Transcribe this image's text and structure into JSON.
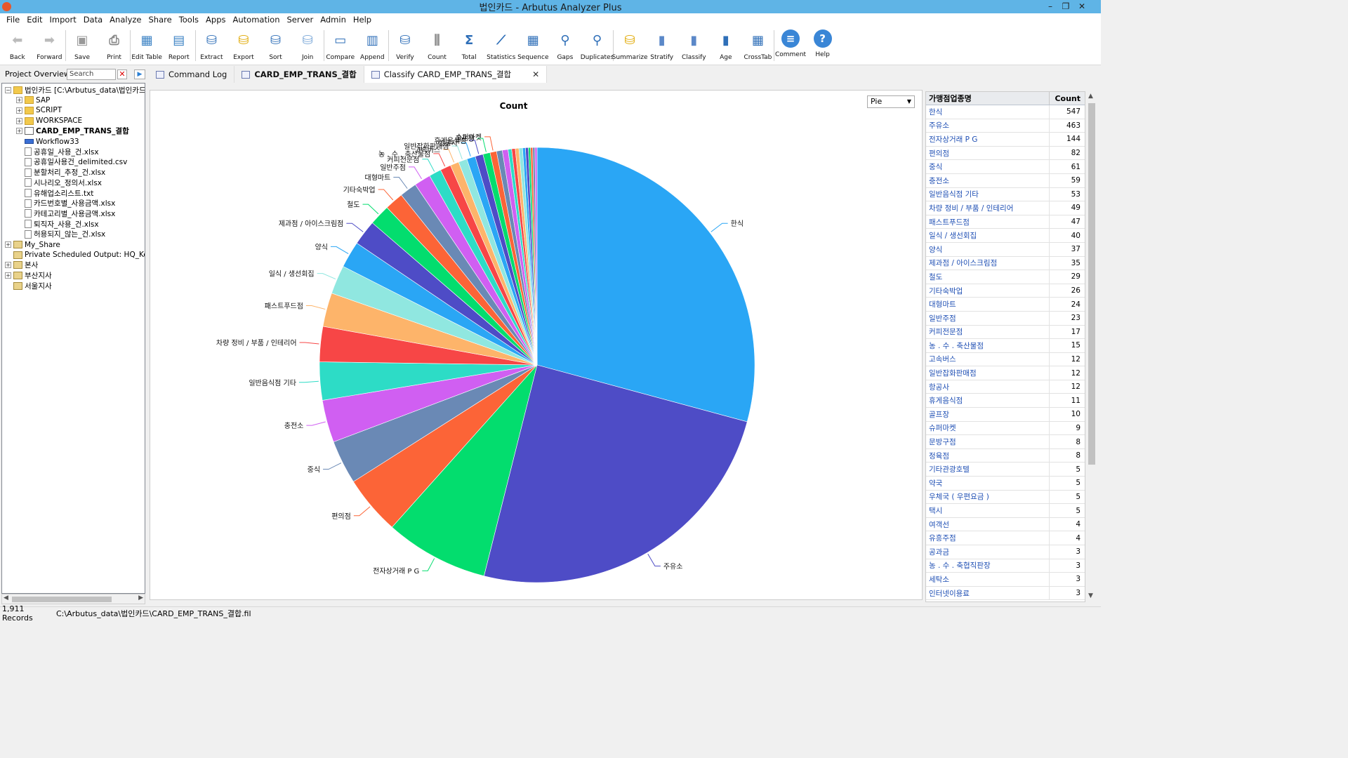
{
  "window": {
    "title": "법인카드 - Arbutus Analyzer Plus"
  },
  "menu": [
    "File",
    "Edit",
    "Import",
    "Data",
    "Analyze",
    "Share",
    "Tools",
    "Apps",
    "Automation",
    "Server",
    "Admin",
    "Help"
  ],
  "toolbar": [
    {
      "label": "Back",
      "icon": "back-arrow-icon"
    },
    {
      "label": "Forward",
      "icon": "forward-arrow-icon"
    },
    {
      "label": "Save",
      "icon": "save-icon"
    },
    {
      "label": "Print",
      "icon": "print-icon"
    },
    {
      "label": "Edit Table",
      "icon": "edit-table-icon"
    },
    {
      "label": "Report",
      "icon": "report-icon"
    },
    {
      "label": "Extract",
      "icon": "extract-icon"
    },
    {
      "label": "Export",
      "icon": "export-icon"
    },
    {
      "label": "Sort",
      "icon": "sort-icon"
    },
    {
      "label": "Join",
      "icon": "join-icon"
    },
    {
      "label": "Compare",
      "icon": "compare-icon"
    },
    {
      "label": "Append",
      "icon": "append-icon"
    },
    {
      "label": "Verify",
      "icon": "verify-icon"
    },
    {
      "label": "Count",
      "icon": "count-icon"
    },
    {
      "label": "Total",
      "icon": "sigma-icon"
    },
    {
      "label": "Statistics",
      "icon": "statistics-icon"
    },
    {
      "label": "Sequence",
      "icon": "sequence-icon"
    },
    {
      "label": "Gaps",
      "icon": "gaps-icon"
    },
    {
      "label": "Duplicates",
      "icon": "duplicates-icon"
    },
    {
      "label": "Summarize",
      "icon": "summarize-icon"
    },
    {
      "label": "Stratify",
      "icon": "stratify-icon"
    },
    {
      "label": "Classify",
      "icon": "classify-icon"
    },
    {
      "label": "Age",
      "icon": "age-icon"
    },
    {
      "label": "CrossTab",
      "icon": "crosstab-icon"
    },
    {
      "label": "Comment",
      "icon": "comment-icon"
    },
    {
      "label": "Help",
      "icon": "help-icon"
    }
  ],
  "project": {
    "title": "Project Overview",
    "search_placeholder": "Search",
    "tree": [
      {
        "label": "법인카드 [C:\\Arbutus_data\\법인카드\\법",
        "level": 0,
        "icon": "folder",
        "expander": "-"
      },
      {
        "label": "SAP",
        "level": 1,
        "icon": "folder",
        "expander": "+"
      },
      {
        "label": "SCRIPT",
        "level": 1,
        "icon": "folder",
        "expander": "+"
      },
      {
        "label": "WORKSPACE",
        "level": 1,
        "icon": "folder",
        "expander": "+"
      },
      {
        "label": "CARD_EMP_TRANS_결합",
        "level": 1,
        "icon": "table",
        "expander": "+",
        "bold": true
      },
      {
        "label": "Workflow33",
        "level": 1,
        "icon": "wf",
        "expander": ""
      },
      {
        "label": "공휴일_사용_건.xlsx",
        "level": 1,
        "icon": "file",
        "expander": ""
      },
      {
        "label": "공휴일사용건_delimited.csv",
        "level": 1,
        "icon": "file",
        "expander": ""
      },
      {
        "label": "분할처리_추정_건.xlsx",
        "level": 1,
        "icon": "file",
        "expander": ""
      },
      {
        "label": "시나리오_정의서.xlsx",
        "level": 1,
        "icon": "file",
        "expander": ""
      },
      {
        "label": "유해업소리스트.txt",
        "level": 1,
        "icon": "file",
        "expander": ""
      },
      {
        "label": "카드번호별_사용금액.xlsx",
        "level": 1,
        "icon": "file",
        "expander": ""
      },
      {
        "label": "카테고리별_사용금액.xlsx",
        "level": 1,
        "icon": "file",
        "expander": ""
      },
      {
        "label": "퇴직자_사용_건.xlsx",
        "level": 1,
        "icon": "file",
        "expander": ""
      },
      {
        "label": "허용되지_않는_건.xlsx",
        "level": 1,
        "icon": "file",
        "expander": ""
      },
      {
        "label": "My_Share",
        "level": 0,
        "icon": "share",
        "expander": "+"
      },
      {
        "label": "Private Scheduled Output:  HQ_Korea",
        "level": 0,
        "icon": "share",
        "expander": ""
      },
      {
        "label": "본사",
        "level": 0,
        "icon": "share",
        "expander": "+"
      },
      {
        "label": "부산지사",
        "level": 0,
        "icon": "share",
        "expander": "+"
      },
      {
        "label": "서울지사",
        "level": 0,
        "icon": "share",
        "expander": ""
      }
    ]
  },
  "tabs": [
    {
      "label": "Command Log",
      "active": false
    },
    {
      "label": "CARD_EMP_TRANS_결합",
      "active": false
    },
    {
      "label": "Classify CARD_EMP_TRANS_결합",
      "active": true,
      "close": "✕"
    }
  ],
  "chart_type_select": "Pie",
  "table": {
    "headers": [
      "가맹점업종명",
      "Count"
    ],
    "rows": [
      [
        "한식",
        "547"
      ],
      [
        "주유소",
        "463"
      ],
      [
        "전자상거래 P G",
        "144"
      ],
      [
        "편의점",
        "82"
      ],
      [
        "중식",
        "61"
      ],
      [
        "충전소",
        "59"
      ],
      [
        "일반음식점   기타",
        "53"
      ],
      [
        "차량   정비 / 부품 / 인테리어",
        "49"
      ],
      [
        "패스트푸드점",
        "47"
      ],
      [
        "일식 / 생선회집",
        "40"
      ],
      [
        "양식",
        "37"
      ],
      [
        "제과점 / 아이스크림점",
        "35"
      ],
      [
        "철도",
        "29"
      ],
      [
        "기타숙박업",
        "26"
      ],
      [
        "대형마트",
        "24"
      ],
      [
        "일반주점",
        "23"
      ],
      [
        "커피전문점",
        "17"
      ],
      [
        "농 . 수 . 축산물점",
        "15"
      ],
      [
        "고속버스",
        "12"
      ],
      [
        "일반잡화판매점",
        "12"
      ],
      [
        "항공사",
        "12"
      ],
      [
        "휴게음식점",
        "11"
      ],
      [
        "골프장",
        "10"
      ],
      [
        "슈퍼마켓",
        "9"
      ],
      [
        "문방구점",
        "8"
      ],
      [
        "정육점",
        "8"
      ],
      [
        "기타관광호텔",
        "5"
      ],
      [
        "약국",
        "5"
      ],
      [
        "우체국 ( 우편요금 )",
        "5"
      ],
      [
        "택시",
        "5"
      ],
      [
        "여객선",
        "4"
      ],
      [
        "유흥주점",
        "4"
      ],
      [
        "공과금",
        "3"
      ],
      [
        "농 . 수 . 축협직판장",
        "3"
      ],
      [
        "세탁소",
        "3"
      ],
      [
        "인터넷이용료",
        "3"
      ]
    ]
  },
  "chart_data": {
    "type": "pie",
    "title": "Count",
    "total": 1911,
    "categories": [
      "한식",
      "주유소",
      "전자상거래 P G",
      "편의점",
      "중식",
      "충전소",
      "일반음식점   기타",
      "차량   정비 / 부품 / 인테리어",
      "패스트푸드점",
      "일식 / 생선회집",
      "양식",
      "제과점 / 아이스크림점",
      "철도",
      "기타숙박업",
      "대형마트",
      "일반주점",
      "커피전문점",
      "농 . 수 . 축산물점",
      "고속버스",
      "일반잡화판매점",
      "항공사",
      "휴게음식점",
      "골프장",
      "슈퍼마켓",
      "문방구점",
      "정육점",
      "기타관광호텔",
      "약국",
      "우체국 ( 우편요금 )",
      "택시",
      "여객선",
      "유흥주점",
      "공과금",
      "농 . 수 . 축협직판장",
      "세탁소",
      "인터넷이용료"
    ],
    "values": [
      547,
      463,
      144,
      82,
      61,
      59,
      53,
      49,
      47,
      40,
      37,
      35,
      29,
      26,
      24,
      23,
      17,
      15,
      12,
      12,
      12,
      11,
      10,
      9,
      8,
      8,
      5,
      5,
      5,
      5,
      4,
      4,
      3,
      3,
      3,
      3
    ],
    "labeled_slices": 24,
    "colors": [
      "#2aa6f5",
      "#4e4cc6",
      "#03dd6e",
      "#fc6437",
      "#6a89b5",
      "#d05ff2",
      "#2ddcc6",
      "#f74646",
      "#fdb46a",
      "#90e7e0",
      "#2aa6f5",
      "#4e4cc6",
      "#03dd6e",
      "#fc6437",
      "#6a89b5",
      "#d05ff2",
      "#2ddcc6",
      "#f74646",
      "#fdb46a",
      "#90e7e0",
      "#2aa6f5",
      "#4e4cc6",
      "#03dd6e",
      "#fc6437",
      "#6a89b5",
      "#d05ff2",
      "#2ddcc6",
      "#f74646",
      "#fdb46a",
      "#90e7e0",
      "#2aa6f5",
      "#4e4cc6",
      "#03dd6e",
      "#fc6437",
      "#6a89b5",
      "#d05ff2"
    ]
  },
  "status": {
    "records": "1,911 Records",
    "path": "C:\\Arbutus_data\\법인카드\\CARD_EMP_TRANS_결합.fil"
  }
}
